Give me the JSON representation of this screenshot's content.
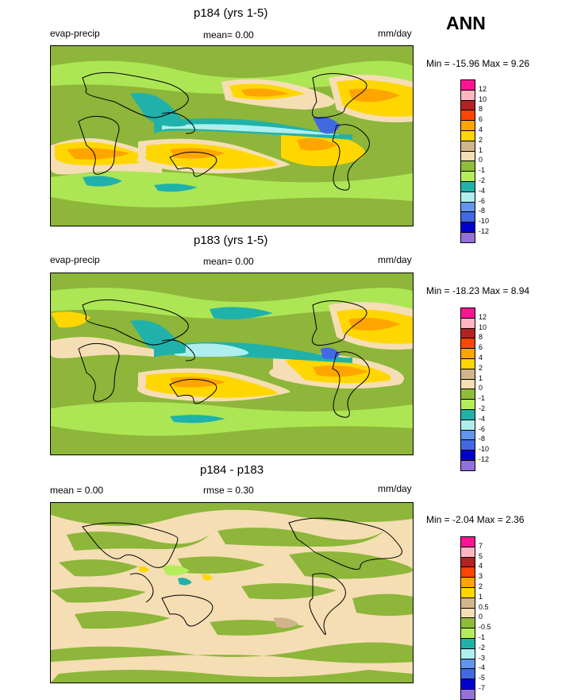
{
  "season": "ANN",
  "panels": [
    {
      "title": "p184 (yrs 1-5)",
      "left_label": "evap-precip",
      "center_label": "mean=  0.00",
      "units": "mm/day",
      "minmax": "Min = -15.96 Max =  9.26",
      "colorbar": {
        "labels": [
          "12",
          "10",
          "8",
          "6",
          "4",
          "2",
          "1",
          "0",
          "-1",
          "-2",
          "-4",
          "-6",
          "-8",
          "-10",
          "-12"
        ],
        "colors": [
          "#ff1493",
          "#ffb6c1",
          "#b22222",
          "#ff4500",
          "#ffa500",
          "#ffd700",
          "#d2b48c",
          "#f5deb3",
          "#8fbc3a",
          "#b3ee5a",
          "#20b2aa",
          "#afeeee",
          "#6495ed",
          "#4169e1",
          "#0000cd",
          "#9370db"
        ]
      }
    },
    {
      "title": "p183 (yrs 1-5)",
      "left_label": "evap-precip",
      "center_label": "mean=  0.00",
      "units": "mm/day",
      "minmax": "Min = -18.23 Max =  8.94",
      "colorbar": {
        "labels": [
          "12",
          "10",
          "8",
          "6",
          "4",
          "2",
          "1",
          "0",
          "-1",
          "-2",
          "-4",
          "-6",
          "-8",
          "-10",
          "-12"
        ],
        "colors": [
          "#ff1493",
          "#ffb6c1",
          "#b22222",
          "#ff4500",
          "#ffa500",
          "#ffd700",
          "#d2b48c",
          "#f5deb3",
          "#8fbc3a",
          "#b3ee5a",
          "#20b2aa",
          "#afeeee",
          "#6495ed",
          "#4169e1",
          "#0000cd",
          "#9370db"
        ]
      }
    },
    {
      "title": "p184 - p183",
      "left_label": "mean =   0.00",
      "center_label": "rmse =   0.30",
      "units": "mm/day",
      "minmax": "Min =  -2.04 Max =  2.36",
      "colorbar": {
        "labels": [
          "7",
          "5",
          "4",
          "3",
          "2",
          "1",
          "0.5",
          "0",
          "-0.5",
          "-1",
          "-2",
          "-3",
          "-4",
          "-5",
          "-7"
        ],
        "colors": [
          "#ff1493",
          "#ffb6c1",
          "#b22222",
          "#ff4500",
          "#ffa500",
          "#ffd700",
          "#d2b48c",
          "#f5deb3",
          "#8fbc3a",
          "#b3ee5a",
          "#20b2aa",
          "#afeeee",
          "#6495ed",
          "#4169e1",
          "#0000cd",
          "#9370db"
        ]
      }
    }
  ],
  "chart_data": [
    {
      "type": "heatmap",
      "title": "p184 (yrs 1-5)",
      "variable": "evap-precip",
      "units": "mm/day",
      "mean": 0.0,
      "min": -15.96,
      "max": 9.26,
      "levels": [
        -12,
        -10,
        -8,
        -6,
        -4,
        -2,
        -1,
        0,
        1,
        2,
        4,
        6,
        8,
        10,
        12
      ]
    },
    {
      "type": "heatmap",
      "title": "p183 (yrs 1-5)",
      "variable": "evap-precip",
      "units": "mm/day",
      "mean": 0.0,
      "min": -18.23,
      "max": 8.94,
      "levels": [
        -12,
        -10,
        -8,
        -6,
        -4,
        -2,
        -1,
        0,
        1,
        2,
        4,
        6,
        8,
        10,
        12
      ]
    },
    {
      "type": "heatmap",
      "title": "p184 - p183",
      "units": "mm/day",
      "mean": 0.0,
      "rmse": 0.3,
      "min": -2.04,
      "max": 2.36,
      "levels": [
        -7,
        -5,
        -4,
        -3,
        -2,
        -1,
        -0.5,
        0,
        0.5,
        1,
        2,
        3,
        4,
        5,
        7
      ]
    }
  ]
}
